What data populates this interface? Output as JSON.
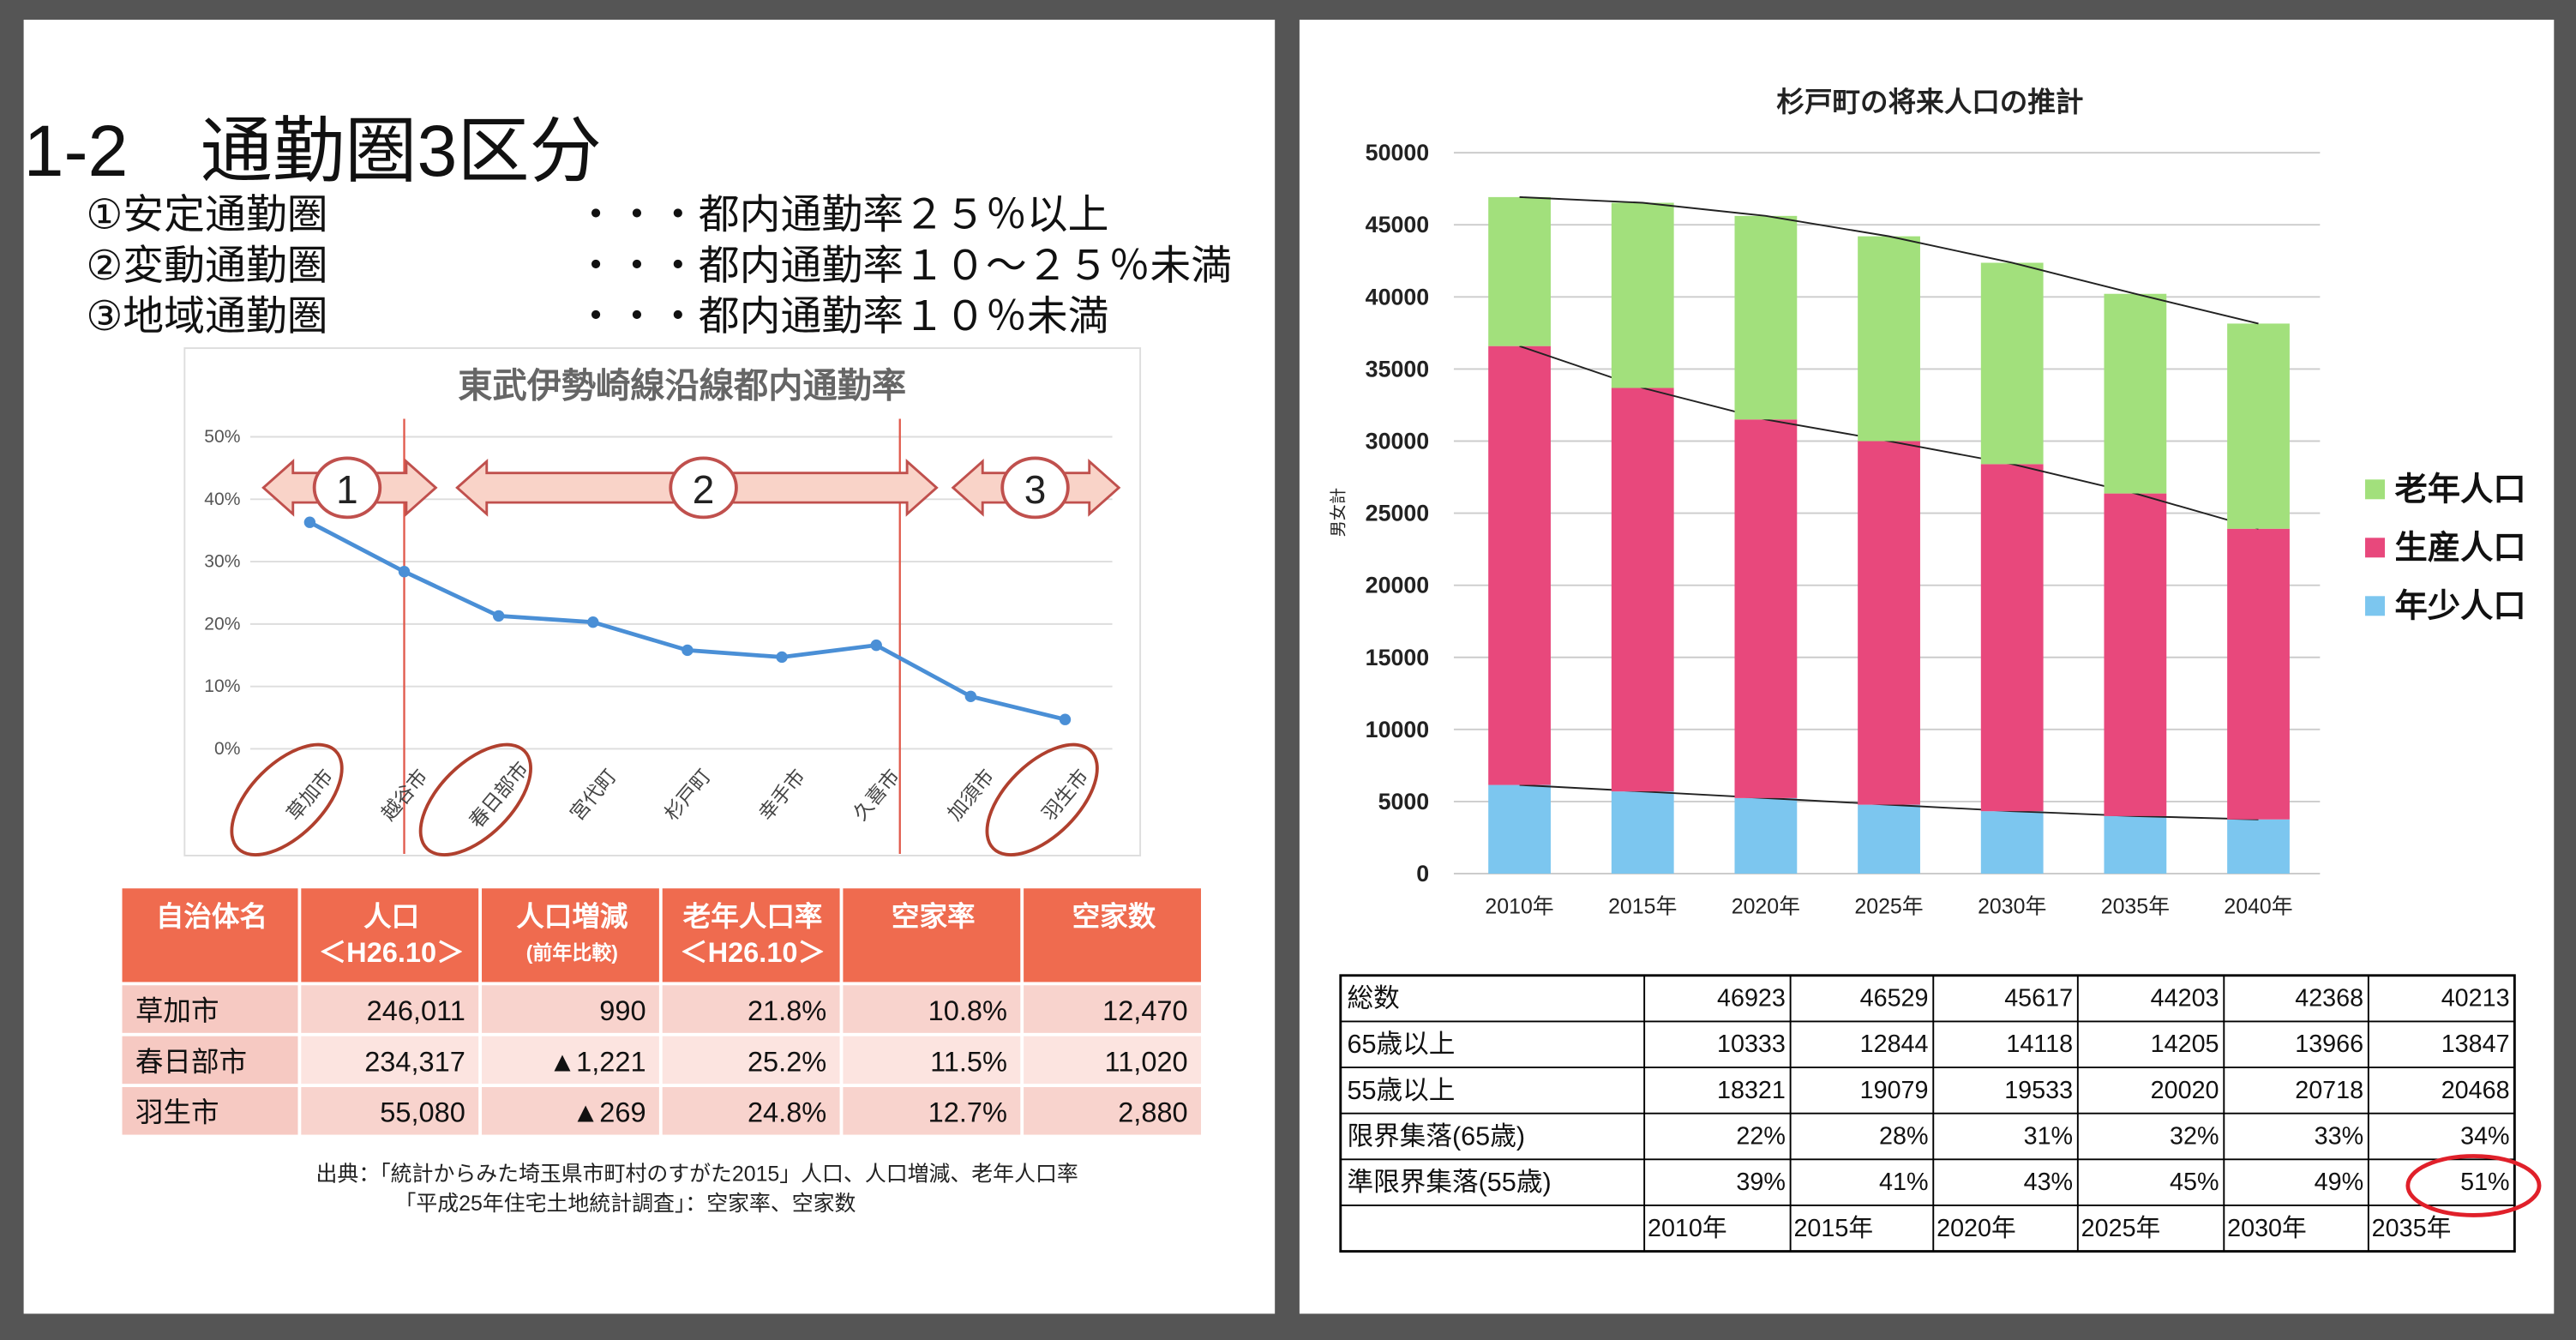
{
  "slide_title": "1-2　通勤圏3区分",
  "zones": [
    {
      "name": "①安定通勤圏",
      "rule": "・・・都内通勤率２５％以上"
    },
    {
      "name": "②変動通勤圏",
      "rule": "・・・都内通勤率１０～２５％未満"
    },
    {
      "name": "③地域通勤圏",
      "rule": "・・・都内通勤率１０％未満"
    }
  ],
  "chart_data": [
    {
      "type": "line",
      "title": "東武伊勢崎線沿線都内通勤率",
      "categories": [
        "草加市",
        "越谷市",
        "春日部市",
        "宮代町",
        "杉戸町",
        "幸手市",
        "久喜市",
        "加須市",
        "羽生市"
      ],
      "values": [
        36.3,
        28.4,
        21.3,
        20.3,
        15.8,
        14.7,
        16.6,
        8.4,
        4.7
      ],
      "color": "#4a8fd6",
      "ylim": [
        0,
        50
      ],
      "yticks": [
        {
          "value": 0,
          "label": "0%"
        },
        {
          "value": 10,
          "label": "10%"
        },
        {
          "value": 20,
          "label": "20%"
        },
        {
          "value": 30,
          "label": "30%"
        },
        {
          "value": 40,
          "label": "40%"
        },
        {
          "value": 50,
          "label": "50%"
        }
      ],
      "grid": true,
      "annotations": [
        "1",
        "2",
        "3"
      ]
    },
    {
      "type": "stacked_bar",
      "title": "杉戸町の将来人口の推計",
      "y_label": "男女計",
      "categories": [
        "2010年",
        "2015年",
        "2020年",
        "2025年",
        "2030年",
        "2035年",
        "2040年"
      ],
      "series": [
        {
          "name": "年少人口",
          "color": "#7cc6ef",
          "values": [
            6150,
            5700,
            5240,
            4780,
            4330,
            3990,
            3760
          ]
        },
        {
          "name": "生産人口",
          "color": "#e8487c",
          "values": [
            30440,
            27985,
            26259,
            25218,
            24072,
            22376,
            20160
          ]
        },
        {
          "name": "老年人口",
          "color": "#a2e07c",
          "values": [
            10333,
            12844,
            14118,
            14205,
            13966,
            13847,
            14230
          ]
        }
      ],
      "ylim": [
        0,
        50000
      ],
      "yticks": [
        0,
        5000,
        10000,
        15000,
        20000,
        25000,
        30000,
        35000,
        40000,
        45000,
        50000
      ],
      "grid": true,
      "legend": "right"
    }
  ],
  "city_table": {
    "header": [
      [
        "自治体名"
      ],
      [
        "人口",
        "＜H26.10＞"
      ],
      [
        "人口増減",
        "(前年比較)"
      ],
      [
        "老年人口率",
        "＜H26.10＞"
      ],
      [
        "空家率"
      ],
      [
        "空家数"
      ]
    ],
    "rows": [
      [
        "草加市",
        "246,011",
        "990",
        "21.8%",
        "10.8%",
        "12,470"
      ],
      [
        "春日部市",
        "234,317",
        "▲1,221",
        "25.2%",
        "11.5%",
        "11,020"
      ],
      [
        "羽生市",
        "55,080",
        "▲269",
        "24.8%",
        "12.7%",
        "2,880"
      ]
    ]
  },
  "source": [
    "出典：「統計からみた埼玉県市町村のすがた2015」人口、人口増減、老年人口率",
    "「平成25年住宅土地統計調査」：空家率、空家数"
  ],
  "population_table": {
    "rows": [
      {
        "label": "総数",
        "cells": [
          "46923",
          "46529",
          "45617",
          "44203",
          "42368",
          "40213"
        ]
      },
      {
        "label": "65歳以上",
        "cells": [
          "10333",
          "12844",
          "14118",
          "14205",
          "13966",
          "13847"
        ]
      },
      {
        "label": "55歳以上",
        "cells": [
          "18321",
          "19079",
          "19533",
          "20020",
          "20718",
          "20468"
        ]
      },
      {
        "label": "限界集落(65歳)",
        "cells": [
          "22%",
          "28%",
          "31%",
          "32%",
          "33%",
          "34%"
        ]
      },
      {
        "label": "準限界集落(55歳)",
        "cells": [
          "39%",
          "41%",
          "43%",
          "45%",
          "49%",
          "51%"
        ]
      }
    ],
    "years": [
      "2010年",
      "2015年",
      "2020年",
      "2025年",
      "2030年",
      "2035年"
    ]
  }
}
